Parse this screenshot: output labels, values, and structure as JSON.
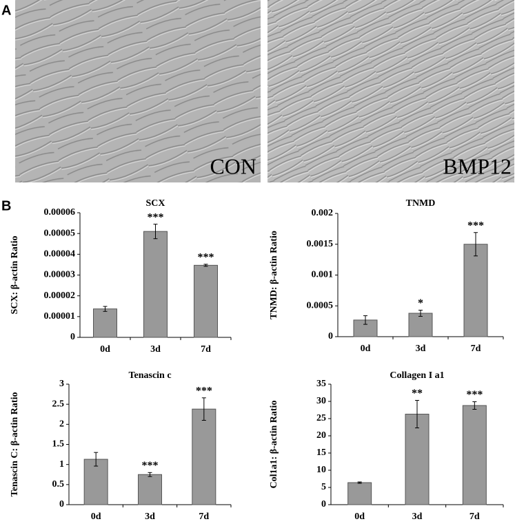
{
  "panel_labels": [
    "A",
    "B"
  ],
  "images": [
    {
      "label": "CON"
    },
    {
      "label": "BMP12"
    }
  ],
  "chart_data": [
    {
      "type": "bar",
      "title": "SCX",
      "y_label": "SCX: β-actin Ratio",
      "categories": [
        "0d",
        "3d",
        "7d"
      ],
      "values": [
        1.37e-05,
        5.1e-05,
        3.47e-05
      ],
      "errors": [
        1.2e-06,
        3.5e-06,
        5e-07
      ],
      "annotations": [
        null,
        "***",
        "***"
      ],
      "color": "#999999",
      "ylim": [
        0,
        6e-05
      ],
      "yticks": [
        0,
        1e-05,
        2e-05,
        3e-05,
        4e-05,
        5e-05,
        6e-05
      ]
    },
    {
      "type": "bar",
      "title": "TNMD",
      "y_label": "TNMD: β-actin Ratio",
      "categories": [
        "0d",
        "3d",
        "7d"
      ],
      "values": [
        0.00027,
        0.00038,
        0.0015
      ],
      "errors": [
        7e-05,
        5e-05,
        0.00019
      ],
      "annotations": [
        null,
        "*",
        "***"
      ],
      "color": "#999999",
      "ylim": [
        0,
        0.002
      ],
      "yticks": [
        0,
        0.0005,
        0.001,
        0.0015,
        0.002
      ]
    },
    {
      "type": "bar",
      "title": "Tenascin c",
      "y_label": "Tenascin C: β-actin Ratio",
      "categories": [
        "0d",
        "3d",
        "7d"
      ],
      "values": [
        1.13,
        0.75,
        2.38
      ],
      "errors": [
        0.17,
        0.05,
        0.28
      ],
      "annotations": [
        null,
        "***",
        "***"
      ],
      "color": "#999999",
      "ylim": [
        0,
        3
      ],
      "yticks": [
        0,
        0.5,
        1,
        1.5,
        2,
        2.5,
        3
      ]
    },
    {
      "type": "bar",
      "title": "Collagen I a1",
      "y_label": "Col1a1: β-actin Ratio",
      "categories": [
        "0d",
        "3d",
        "7d"
      ],
      "values": [
        6.4,
        26.3,
        28.8
      ],
      "errors": [
        0.2,
        4,
        1.1
      ],
      "annotations": [
        null,
        "**",
        "***"
      ],
      "color": "#999999",
      "ylim": [
        0,
        35
      ],
      "yticks": [
        0,
        5,
        10,
        15,
        20,
        25,
        30,
        35
      ]
    }
  ]
}
